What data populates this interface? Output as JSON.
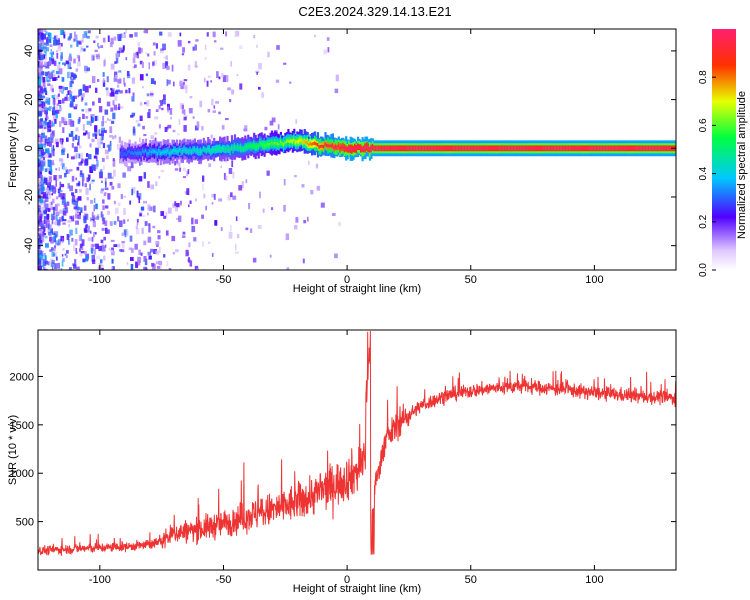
{
  "title": "C2E3.2024.329.14.13.E21",
  "chart_data": [
    {
      "type": "heatmap",
      "xlabel": "Height of straight line (km)",
      "ylabel": "Frequency (Hz)",
      "xlim": [
        -125,
        133
      ],
      "ylim": [
        -50,
        49
      ],
      "xticks": [
        -100,
        -50,
        0,
        50,
        100
      ],
      "yticks": [
        -40,
        -20,
        0,
        20,
        40
      ],
      "colorbar": {
        "label": "Normalized spectral amplitude",
        "range": [
          0,
          1
        ],
        "ticks": [
          0.0,
          0.2,
          0.4,
          0.6,
          0.8
        ],
        "tick_labels": [
          "0.0",
          "0.2",
          "0.4",
          "0.6",
          "0.8"
        ]
      },
      "ridge": {
        "description_points_x": [
          -90,
          -75,
          -60,
          -45,
          -30,
          -20,
          -10,
          0,
          10,
          133
        ],
        "description_points_freq": [
          -2,
          -1.5,
          -1,
          0,
          2,
          3,
          1,
          0,
          0,
          0
        ],
        "peak_amplitude": [
          0.3,
          0.4,
          0.45,
          0.5,
          0.6,
          0.7,
          0.9,
          1.0,
          1.0,
          1.0
        ]
      },
      "grid": false
    },
    {
      "type": "line",
      "xlabel": "Height of straight line (km)",
      "ylabel": "SNR (10 * v/v)",
      "xlim": [
        -125,
        133
      ],
      "ylim": [
        0,
        2480
      ],
      "xticks": [
        -100,
        -50,
        0,
        50,
        100
      ],
      "yticks": [
        500,
        1000,
        1500,
        2000
      ],
      "series": [
        {
          "color": "#ee3333",
          "x": [
            -125,
            -110,
            -100,
            -90,
            -80,
            -75,
            -70,
            -60,
            -50,
            -40,
            -30,
            -20,
            -10,
            0,
            5,
            8,
            10,
            15,
            20,
            30,
            40,
            50,
            60,
            70,
            80,
            90,
            100,
            110,
            120,
            133
          ],
          "y": [
            200,
            220,
            230,
            240,
            260,
            300,
            380,
            420,
            480,
            560,
            620,
            700,
            820,
            950,
            1050,
            1200,
            700,
            1300,
            1500,
            1700,
            1800,
            1850,
            1880,
            1900,
            1880,
            1860,
            1830,
            1810,
            1790,
            1780
          ]
        }
      ],
      "grid": false
    }
  ]
}
